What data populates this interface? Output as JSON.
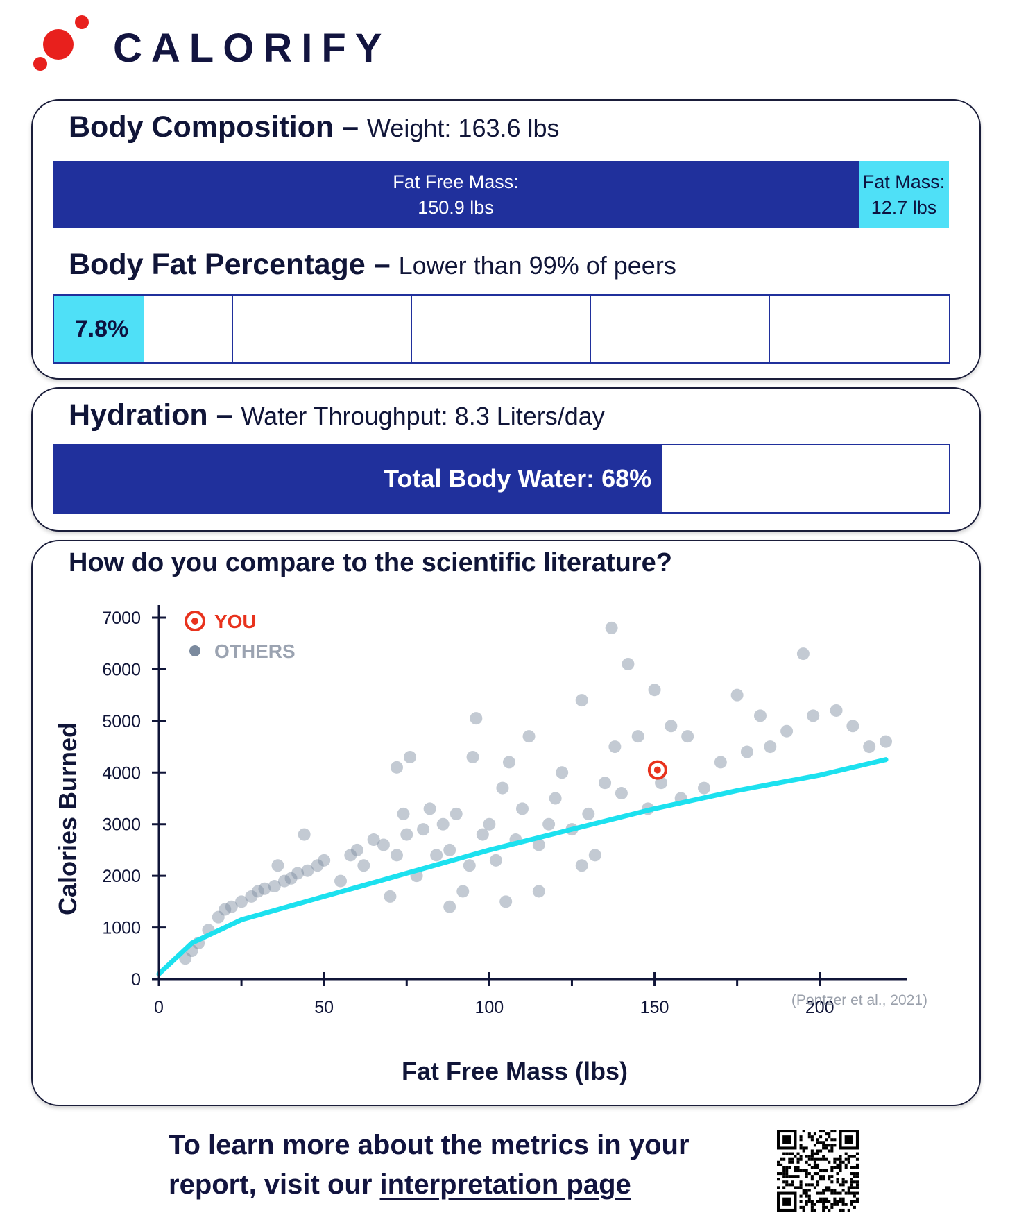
{
  "brand": {
    "name": "CALORIFY",
    "colors": {
      "accent": "#e8201d",
      "navy": "#20309c",
      "cyan": "#4fe0f7"
    }
  },
  "body_composition": {
    "title": "Body Composition",
    "weight_text": "Weight: 163.6 lbs",
    "fat_free_label": "Fat Free Mass:",
    "fat_free_value": "150.9 lbs",
    "fat_label": "Fat Mass:",
    "fat_value": "12.7 lbs",
    "fat_free_lbs": 150.9,
    "fat_lbs": 12.7
  },
  "body_fat": {
    "title": "Body Fat Percentage",
    "comparison_text": "Lower than 99% of peers",
    "value_text": "7.8%",
    "segments": 5
  },
  "hydration": {
    "title": "Hydration",
    "throughput_text": "Water Throughput: 8.3 Liters/day",
    "bar_label": "Total Body Water: 68%",
    "percent": 68
  },
  "comparison": {
    "title": "How do you compare to the scientific literature?",
    "legend_you": "YOU",
    "legend_others": "OTHERS",
    "citation": "(Pontzer et al., 2021)"
  },
  "chart_data": {
    "type": "scatter",
    "xlabel": "Fat Free Mass (lbs)",
    "ylabel": "Calories Burned",
    "xlim": [
      0,
      220
    ],
    "ylim": [
      0,
      7000
    ],
    "x_ticks": [
      0,
      50,
      100,
      150,
      200
    ],
    "y_ticks": [
      0,
      1000,
      2000,
      3000,
      4000,
      5000,
      6000,
      7000
    ],
    "legend": "top-left",
    "series": [
      {
        "name": "YOU",
        "color": "#e8321d",
        "points": [
          [
            150.9,
            4050
          ]
        ]
      },
      {
        "name": "OTHERS",
        "color": "#7b8a9e",
        "points": [
          [
            8,
            400
          ],
          [
            10,
            550
          ],
          [
            12,
            700
          ],
          [
            15,
            950
          ],
          [
            18,
            1200
          ],
          [
            20,
            1350
          ],
          [
            22,
            1400
          ],
          [
            25,
            1500
          ],
          [
            28,
            1600
          ],
          [
            30,
            1700
          ],
          [
            32,
            1750
          ],
          [
            35,
            1800
          ],
          [
            38,
            1900
          ],
          [
            40,
            1950
          ],
          [
            42,
            2050
          ],
          [
            45,
            2100
          ],
          [
            48,
            2200
          ],
          [
            50,
            2300
          ],
          [
            44,
            2800
          ],
          [
            36,
            2200
          ],
          [
            55,
            1900
          ],
          [
            58,
            2400
          ],
          [
            60,
            2500
          ],
          [
            62,
            2200
          ],
          [
            65,
            2700
          ],
          [
            68,
            2600
          ],
          [
            70,
            1600
          ],
          [
            72,
            2400
          ],
          [
            74,
            3200
          ],
          [
            75,
            2800
          ],
          [
            76,
            4300
          ],
          [
            78,
            2000
          ],
          [
            80,
            2900
          ],
          [
            82,
            3300
          ],
          [
            84,
            2400
          ],
          [
            86,
            3000
          ],
          [
            88,
            2500
          ],
          [
            90,
            3200
          ],
          [
            92,
            1700
          ],
          [
            94,
            2200
          ],
          [
            95,
            4300
          ],
          [
            96,
            5050
          ],
          [
            98,
            2800
          ],
          [
            100,
            3000
          ],
          [
            102,
            2300
          ],
          [
            104,
            3700
          ],
          [
            105,
            1500
          ],
          [
            106,
            4200
          ],
          [
            108,
            2700
          ],
          [
            110,
            3300
          ],
          [
            112,
            4700
          ],
          [
            115,
            2600
          ],
          [
            118,
            3000
          ],
          [
            120,
            3500
          ],
          [
            122,
            4000
          ],
          [
            125,
            2900
          ],
          [
            128,
            5400
          ],
          [
            130,
            3200
          ],
          [
            132,
            2400
          ],
          [
            135,
            3800
          ],
          [
            137,
            6800
          ],
          [
            138,
            4500
          ],
          [
            140,
            3600
          ],
          [
            142,
            6100
          ],
          [
            145,
            4700
          ],
          [
            148,
            3300
          ],
          [
            150,
            5600
          ],
          [
            152,
            3800
          ],
          [
            155,
            4900
          ],
          [
            158,
            3500
          ],
          [
            160,
            4700
          ],
          [
            165,
            3700
          ],
          [
            170,
            4200
          ],
          [
            175,
            5500
          ],
          [
            178,
            4400
          ],
          [
            182,
            5100
          ],
          [
            185,
            4500
          ],
          [
            190,
            4800
          ],
          [
            195,
            6300
          ],
          [
            198,
            5100
          ],
          [
            205,
            5200
          ],
          [
            210,
            4900
          ],
          [
            215,
            4500
          ],
          [
            220,
            4600
          ],
          [
            88,
            1400
          ],
          [
            115,
            1700
          ],
          [
            72,
            4100
          ],
          [
            128,
            2200
          ]
        ]
      }
    ],
    "fit_line": {
      "name": "",
      "color": "#1ce1ef",
      "points": [
        [
          0,
          100
        ],
        [
          10,
          700
        ],
        [
          25,
          1150
        ],
        [
          50,
          1600
        ],
        [
          75,
          2050
        ],
        [
          100,
          2500
        ],
        [
          125,
          2900
        ],
        [
          150,
          3300
        ],
        [
          175,
          3650
        ],
        [
          200,
          3950
        ],
        [
          220,
          4250
        ]
      ]
    }
  }
}
